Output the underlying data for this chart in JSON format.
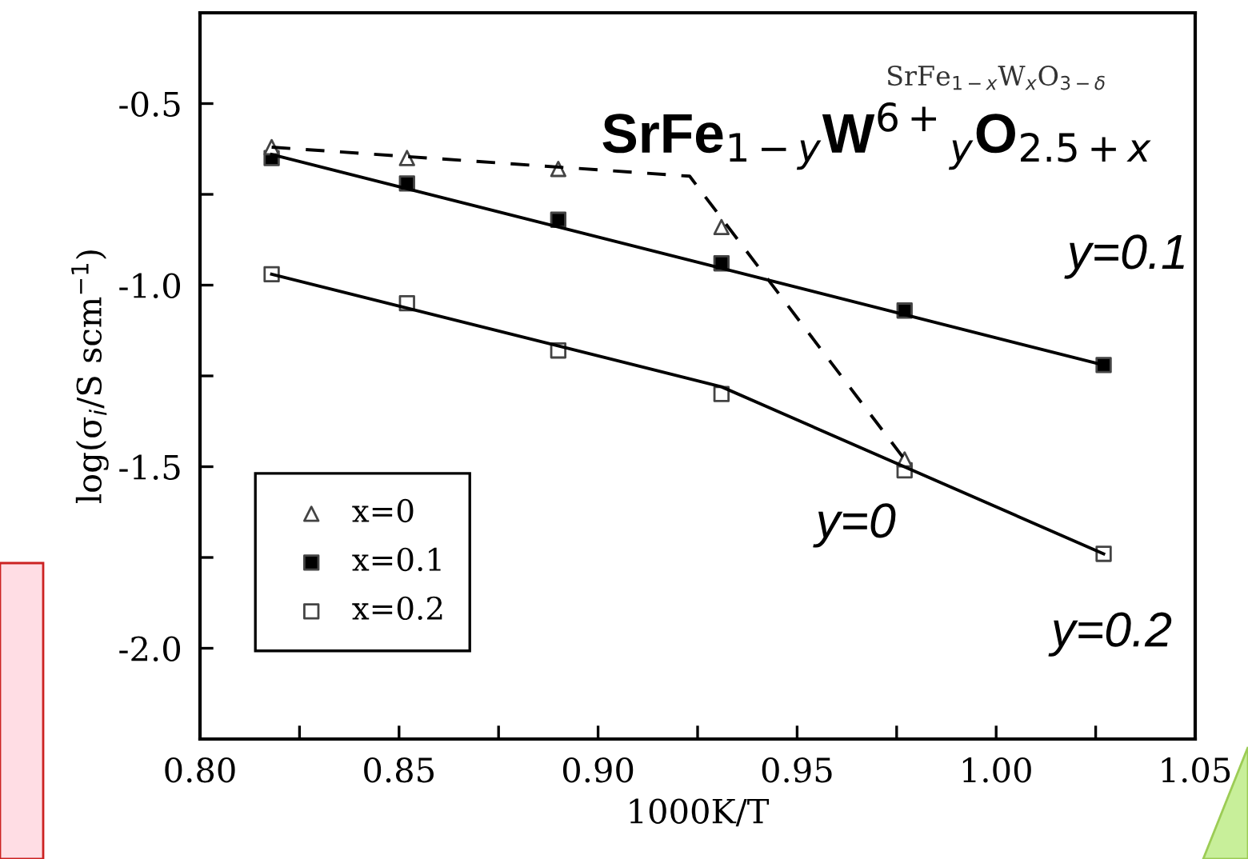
{
  "chart_data": {
    "type": "scatter",
    "xlabel": "1000K/T",
    "ylabel": "log(σ$_{i}$/S scm$^{−1}$)",
    "xlim": [
      0.8,
      1.05
    ],
    "ylim": [
      -2.25,
      -0.25
    ],
    "xticks": [
      {
        "value": 0.8,
        "label": "0.80"
      },
      {
        "value": 0.825,
        "label": null
      },
      {
        "value": 0.85,
        "label": "0.85"
      },
      {
        "value": 0.875,
        "label": null
      },
      {
        "value": 0.9,
        "label": "0.90"
      },
      {
        "value": 0.925,
        "label": null
      },
      {
        "value": 0.95,
        "label": "0.95"
      },
      {
        "value": 0.975,
        "label": null
      },
      {
        "value": 1.0,
        "label": "1.00"
      },
      {
        "value": 1.025,
        "label": null
      },
      {
        "value": 1.05,
        "label": "1.05"
      }
    ],
    "yticks": [
      {
        "value": -0.5,
        "label": "-0.5"
      },
      {
        "value": -0.75,
        "label": null
      },
      {
        "value": -1.0,
        "label": "-1.0"
      },
      {
        "value": -1.25,
        "label": null
      },
      {
        "value": -1.5,
        "label": "-1.5"
      },
      {
        "value": -1.75,
        "label": null
      },
      {
        "value": -2.0,
        "label": "-2.0"
      }
    ],
    "grid": false,
    "legend": "bottom left",
    "series": [
      {
        "name": "x=0",
        "type": "scatter",
        "marker": "triangle",
        "color": "#ffffff",
        "x": [
          0.818,
          0.852,
          0.89,
          0.931,
          0.977
        ],
        "values": [
          -0.62,
          -0.65,
          -0.68,
          -0.84,
          -1.48
        ]
      },
      {
        "name": "x=0.1",
        "type": "scatter",
        "marker": "square",
        "color": "#000000",
        "x": [
          0.818,
          0.852,
          0.89,
          0.931,
          0.977,
          1.027
        ],
        "values": [
          -0.65,
          -0.72,
          -0.82,
          -0.94,
          -1.07,
          -1.22
        ]
      },
      {
        "name": "x=0.2",
        "type": "scatter",
        "marker": "square",
        "color": "#ffffff",
        "x": [
          0.818,
          0.852,
          0.89,
          0.931,
          0.977,
          1.027
        ],
        "values": [
          -0.97,
          -1.05,
          -1.18,
          -1.3,
          -1.51,
          -1.74
        ]
      },
      {
        "type": "line",
        "line_style": "dashed",
        "color": "#000000",
        "x": [
          0.818,
          0.923,
          0.977
        ],
        "values": [
          -0.62,
          -0.7,
          -1.48
        ]
      },
      {
        "type": "line",
        "line_style": "solid",
        "color": "#000000",
        "x": [
          0.818,
          1.027
        ],
        "values": [
          -0.64,
          -1.22
        ]
      },
      {
        "type": "line",
        "line_style": "solid",
        "color": "#000000",
        "x": [
          0.818,
          0.931,
          1.027
        ],
        "values": [
          -0.97,
          -1.28,
          -1.74
        ]
      }
    ],
    "annotations": [
      "SrFe$_{1−x}$W$_{x}$O$_{3−δ}$",
      "SrFe$_{1−y}$W$^{6+}$$_{y}$O$_{2.5+x}$",
      "y=0.1",
      "y=0",
      "y=0.2"
    ]
  }
}
